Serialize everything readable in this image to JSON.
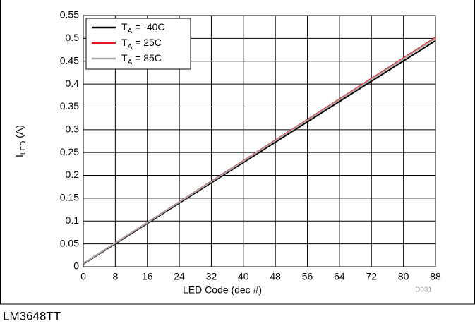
{
  "chart_data": {
    "type": "line",
    "x": [
      0,
      88
    ],
    "series": [
      {
        "name": "TA = -40C",
        "color": "#000000",
        "values": [
          0.006,
          0.495
        ]
      },
      {
        "name": "TA = 25C",
        "color": "#e8141c",
        "values": [
          0.007,
          0.502
        ]
      },
      {
        "name": "TA = 85C",
        "color": "#a8a8a8",
        "values": [
          0.007,
          0.5
        ]
      }
    ],
    "xlabel": "LED Code (dec #)",
    "ylabel": "ILED (A)",
    "xlim": [
      0,
      88
    ],
    "xticks": [
      0,
      8,
      16,
      24,
      32,
      40,
      48,
      56,
      64,
      72,
      80,
      88
    ],
    "ylim": [
      0,
      0.55
    ],
    "yticks": [
      0,
      0.05,
      0.1,
      0.15,
      0.2,
      0.25,
      0.3,
      0.35,
      0.4,
      0.45,
      0.5,
      0.55
    ],
    "grid": true,
    "legend": "upper left",
    "note": "D031",
    "caption": "LM3648TT"
  }
}
